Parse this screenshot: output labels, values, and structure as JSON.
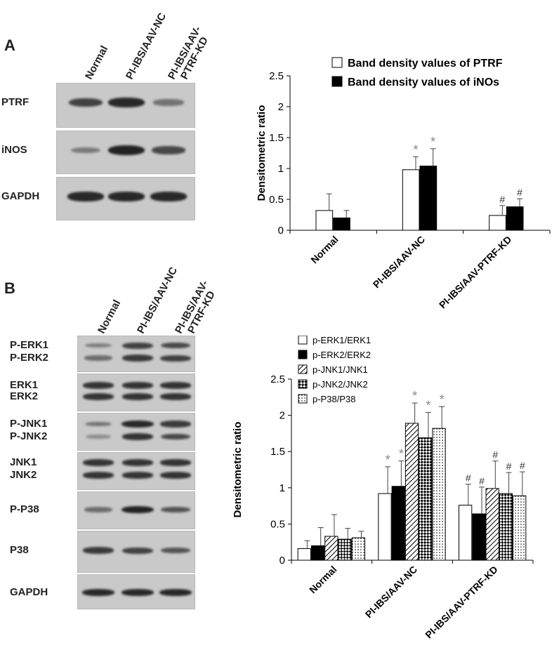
{
  "panels": {
    "a": {
      "letter": "A",
      "lanes": [
        "Normal",
        "PI-IBS/AAV-NC",
        "PI-IBS/AAV-PTRF-KD"
      ],
      "rows": [
        "PTRF",
        "iNOS",
        "GAPDH"
      ]
    },
    "b": {
      "letter": "B",
      "lanes": [
        "Normal",
        "PI-IBS/AAV-NC",
        "PI-IBS/AAV-PTRF-KD"
      ],
      "rows": [
        "P-ERK1",
        "P-ERK2",
        "ERK1",
        "ERK2",
        "P-JNK1",
        "P-JNK2",
        "JNK1",
        "JNK2",
        "P-P38",
        "P38",
        "GAPDH"
      ]
    }
  },
  "lane_label_lines": {
    "a": [
      [
        "Normal"
      ],
      [
        "PI-IBS/AAV-NC"
      ],
      [
        "PI-IBS/AAV-",
        "PTRF-KD"
      ]
    ],
    "b": [
      [
        "Normal"
      ],
      [
        "PI-IBS/AAV-NC"
      ],
      [
        "PI-IBS/AAV-",
        "PTRF-KD"
      ]
    ]
  },
  "band_intensity": {
    "a": [
      [
        0.75,
        0.95,
        0.35
      ],
      [
        0.3,
        1.0,
        0.7
      ],
      [
        0.95,
        0.95,
        0.95
      ]
    ],
    "b": [
      [
        0.25,
        0.75,
        0.7
      ],
      [
        0.4,
        0.8,
        0.75
      ],
      [
        0.85,
        0.85,
        0.85
      ],
      [
        0.85,
        0.85,
        0.85
      ],
      [
        0.35,
        0.95,
        0.8
      ],
      [
        0.15,
        0.85,
        0.7
      ],
      [
        0.85,
        0.85,
        0.85
      ],
      [
        0.85,
        0.85,
        0.85
      ],
      [
        0.4,
        1.0,
        0.6
      ],
      [
        0.8,
        0.75,
        0.6
      ],
      [
        0.95,
        0.95,
        0.95
      ]
    ]
  },
  "chart_data": [
    {
      "type": "bar",
      "categories": [
        "Normal",
        "PI-IBS/AAV-NC",
        "PI-IBS/AAV-PTRF-KD"
      ],
      "ylabel": "Densitometric ratio",
      "ylim": [
        0,
        2.5
      ],
      "yticks": [
        "0",
        "0.5",
        "1",
        "1.5",
        "2",
        "2.5"
      ],
      "legend_position": "top",
      "series": [
        {
          "name": "Band density values of PTRF",
          "values": [
            0.32,
            0.98,
            0.24
          ],
          "errors": [
            0.27,
            0.21,
            0.16
          ],
          "markers": [
            "",
            "*",
            "#"
          ],
          "pattern": "white",
          "color": "#ffffff"
        },
        {
          "name": "Band density values of iNOs",
          "values": [
            0.2,
            1.04,
            0.38
          ],
          "errors": [
            0.12,
            0.28,
            0.13
          ],
          "markers": [
            "",
            "*",
            "#"
          ],
          "pattern": "black",
          "color": "#000000"
        }
      ]
    },
    {
      "type": "bar",
      "categories": [
        "Normal",
        "PI-IBS/AAV-NC",
        "PI-IBS/AAV-PTRF-KD"
      ],
      "ylabel": "Densitometric ratio",
      "ylim": [
        0,
        2.5
      ],
      "yticks": [
        "0",
        "0.5",
        "1",
        "1.5",
        "2",
        "2.5"
      ],
      "legend_position": "top-left",
      "series": [
        {
          "name": "p-ERK1/ERK1",
          "values": [
            0.16,
            0.92,
            0.76
          ],
          "errors": [
            0.11,
            0.37,
            0.29
          ],
          "markers": [
            "",
            "*",
            "#"
          ],
          "pattern": "white",
          "color": "#ffffff"
        },
        {
          "name": "p-ERK2/ERK2",
          "values": [
            0.2,
            1.02,
            0.64
          ],
          "errors": [
            0.25,
            0.35,
            0.37
          ],
          "markers": [
            "",
            "*",
            "#"
          ],
          "pattern": "black",
          "color": "#000000"
        },
        {
          "name": "p-JNK1/JNK1",
          "values": [
            0.33,
            1.89,
            0.99
          ],
          "errors": [
            0.3,
            0.28,
            0.38
          ],
          "markers": [
            "",
            "*",
            "#"
          ],
          "pattern": "diag",
          "color": "#444444"
        },
        {
          "name": "p-JNK2/JNK2",
          "values": [
            0.29,
            1.69,
            0.92
          ],
          "errors": [
            0.15,
            0.35,
            0.29
          ],
          "markers": [
            "",
            "*",
            "#"
          ],
          "pattern": "check",
          "color": "#444444"
        },
        {
          "name": "p-P38/P38",
          "values": [
            0.31,
            1.82,
            0.89
          ],
          "errors": [
            0.09,
            0.3,
            0.33
          ],
          "markers": [
            "",
            "*",
            "#"
          ],
          "pattern": "dots",
          "color": "#444444"
        }
      ]
    }
  ]
}
